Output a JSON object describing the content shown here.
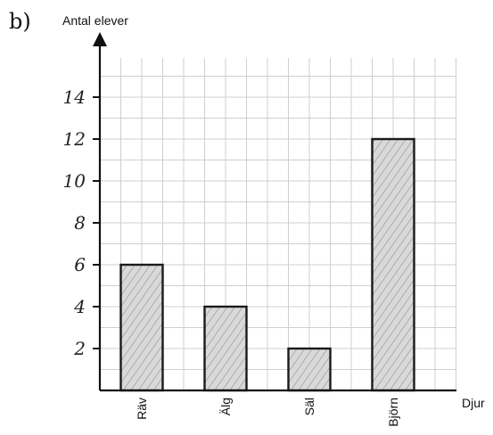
{
  "label": "b)",
  "chart_data": {
    "type": "bar",
    "ylabel": "Antal elever",
    "xlabel": "Djur",
    "categories": [
      "Räv",
      "Älg",
      "Säl",
      "Björn"
    ],
    "values": [
      6,
      4,
      2,
      12
    ],
    "ylim": [
      0,
      15
    ],
    "yticks": [
      2,
      4,
      6,
      8,
      10,
      12,
      14
    ],
    "grid": true,
    "bar_fill": "#d9d9d9",
    "hatch_color": "#9a9a9a",
    "axis_color": "#111111",
    "grid_color": "#cfcfcf"
  }
}
